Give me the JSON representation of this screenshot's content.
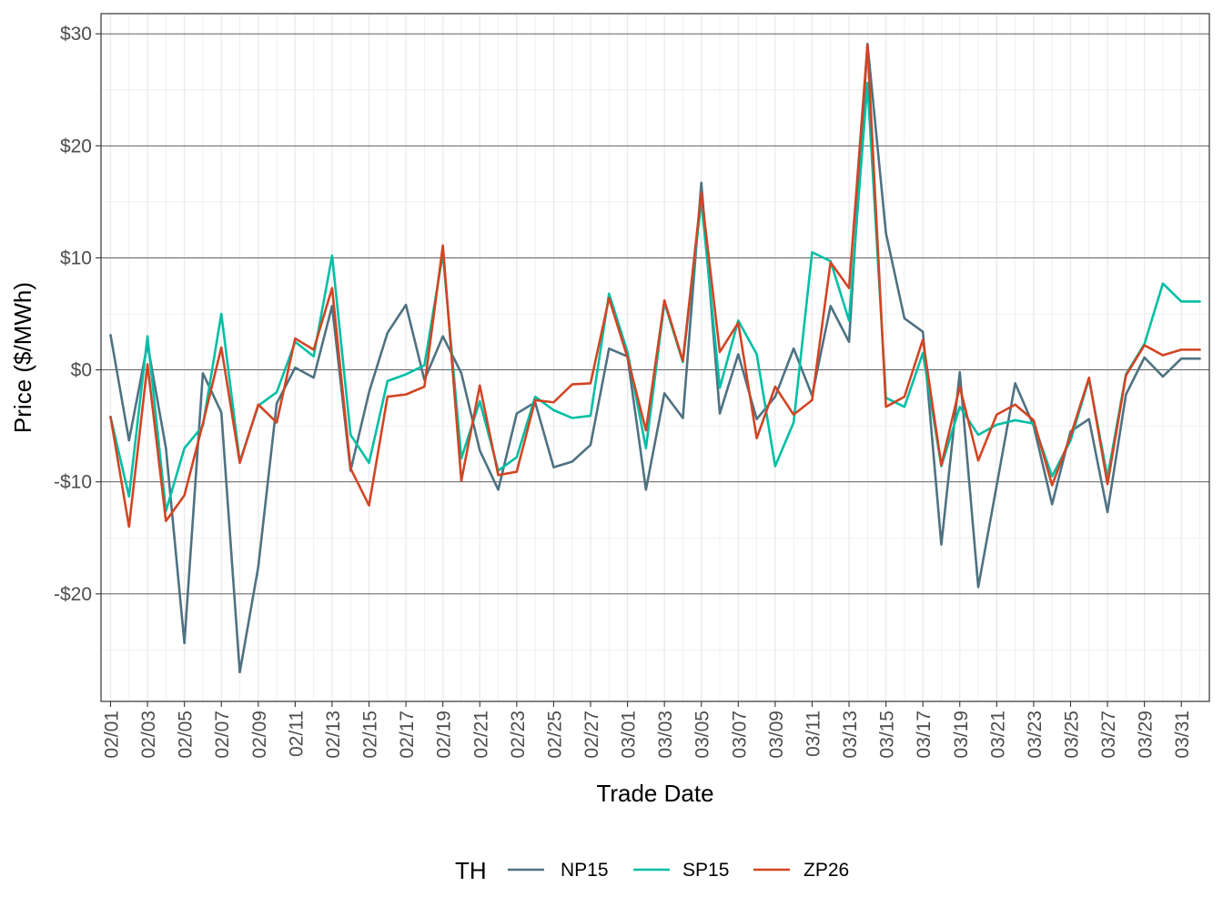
{
  "chart_data": {
    "type": "line",
    "xlabel": "Trade Date",
    "ylabel": "Price ($/MWh)",
    "ylim": [
      -29.6,
      31.8
    ],
    "y_ticks": [
      30,
      20,
      10,
      0,
      -10,
      -20
    ],
    "y_tick_labels": [
      "$30",
      "$20",
      "$10",
      "$0",
      "-$10",
      "-$20"
    ],
    "x_tick_labels": [
      "02/01",
      "02/03",
      "02/05",
      "02/07",
      "02/09",
      "02/11",
      "02/13",
      "02/15",
      "02/17",
      "02/19",
      "02/21",
      "02/23",
      "02/25",
      "02/27",
      "03/01",
      "03/03",
      "03/05",
      "03/07",
      "03/09",
      "03/11",
      "03/13",
      "03/15",
      "03/17",
      "03/19",
      "03/21",
      "03/23",
      "03/25",
      "03/27",
      "03/29",
      "03/31"
    ],
    "dates": [
      "02/01",
      "02/02",
      "02/03",
      "02/04",
      "02/05",
      "02/06",
      "02/07",
      "02/08",
      "02/09",
      "02/10",
      "02/11",
      "02/12",
      "02/13",
      "02/14",
      "02/15",
      "02/16",
      "02/17",
      "02/18",
      "02/19",
      "02/20",
      "02/21",
      "02/22",
      "02/23",
      "02/24",
      "02/25",
      "02/26",
      "02/27",
      "02/28",
      "02/29",
      "03/01",
      "03/02",
      "03/03",
      "03/04",
      "03/05",
      "03/06",
      "03/07",
      "03/08",
      "03/09",
      "03/10",
      "03/11",
      "03/12",
      "03/13",
      "03/14",
      "03/15",
      "03/16",
      "03/17",
      "03/18",
      "03/19",
      "03/20",
      "03/21",
      "03/22",
      "03/23",
      "03/24",
      "03/25",
      "03/26",
      "03/27",
      "03/28",
      "03/29",
      "03/30",
      "03/31"
    ],
    "grid": true,
    "legend_position": "bottom",
    "legend_title": "TH",
    "series": [
      {
        "name": "NP15",
        "color": "#4e7282",
        "values": [
          3.1,
          -6.3,
          2.3,
          -7.0,
          -24.4,
          -0.3,
          -3.8,
          -27.0,
          -17.6,
          -3.0,
          0.2,
          -0.7,
          5.7,
          -9.0,
          -2.0,
          3.3,
          5.8,
          -0.9,
          3.0,
          -0.3,
          -7.2,
          -10.7,
          -3.9,
          -2.9,
          -8.7,
          -8.2,
          -6.7,
          1.9,
          1.2,
          -10.7,
          -2.1,
          -4.3,
          16.7,
          -3.9,
          1.4,
          -4.4,
          -2.4,
          1.9,
          -2.3,
          5.7,
          2.5,
          29.1,
          12.2,
          4.6,
          3.4,
          -15.6,
          -0.2,
          -19.4,
          -10.3,
          -1.2,
          -5.0,
          -12.0,
          -5.5,
          -4.4,
          -12.7,
          -2.2,
          1.1,
          -0.6,
          1.0,
          1.0
        ]
      },
      {
        "name": "SP15",
        "color": "#00bfa5",
        "values": [
          -4.2,
          -11.3,
          3.0,
          -12.6,
          -7.0,
          -5.0,
          5.0,
          -8.2,
          -3.2,
          -2.0,
          2.5,
          1.2,
          10.2,
          -5.8,
          -8.3,
          -1.0,
          -0.4,
          0.4,
          10.4,
          -7.9,
          -2.8,
          -9.0,
          -7.8,
          -2.4,
          -3.6,
          -4.3,
          -4.1,
          6.8,
          1.6,
          -7.0,
          6.0,
          0.7,
          15.1,
          -1.6,
          4.4,
          1.4,
          -8.6,
          -4.7,
          10.5,
          9.7,
          4.4,
          25.6,
          -2.5,
          -3.3,
          1.5,
          -8.6,
          -3.3,
          -5.8,
          -4.9,
          -4.5,
          -4.8,
          -9.5,
          -6.3,
          -0.8,
          -9.6,
          -0.4,
          2.3,
          7.7,
          6.1,
          6.1
        ]
      },
      {
        "name": "ZP26",
        "color": "#d14524",
        "values": [
          -4.2,
          -14.0,
          0.5,
          -13.5,
          -11.2,
          -4.8,
          2.0,
          -8.3,
          -3.1,
          -4.7,
          2.8,
          1.8,
          7.3,
          -8.8,
          -12.1,
          -2.4,
          -2.2,
          -1.5,
          11.1,
          -9.9,
          -1.4,
          -9.4,
          -9.1,
          -2.7,
          -2.9,
          -1.3,
          -1.2,
          6.4,
          1.1,
          -5.4,
          6.2,
          0.8,
          15.8,
          1.6,
          4.2,
          -6.1,
          -1.5,
          -4.0,
          -2.7,
          9.6,
          7.3,
          29.0,
          -3.3,
          -2.4,
          2.7,
          -8.5,
          -1.5,
          -8.1,
          -4.0,
          -3.1,
          -4.5,
          -10.3,
          -5.9,
          -0.7,
          -10.2,
          -0.5,
          2.2,
          1.3,
          1.8,
          1.8
        ]
      }
    ]
  }
}
